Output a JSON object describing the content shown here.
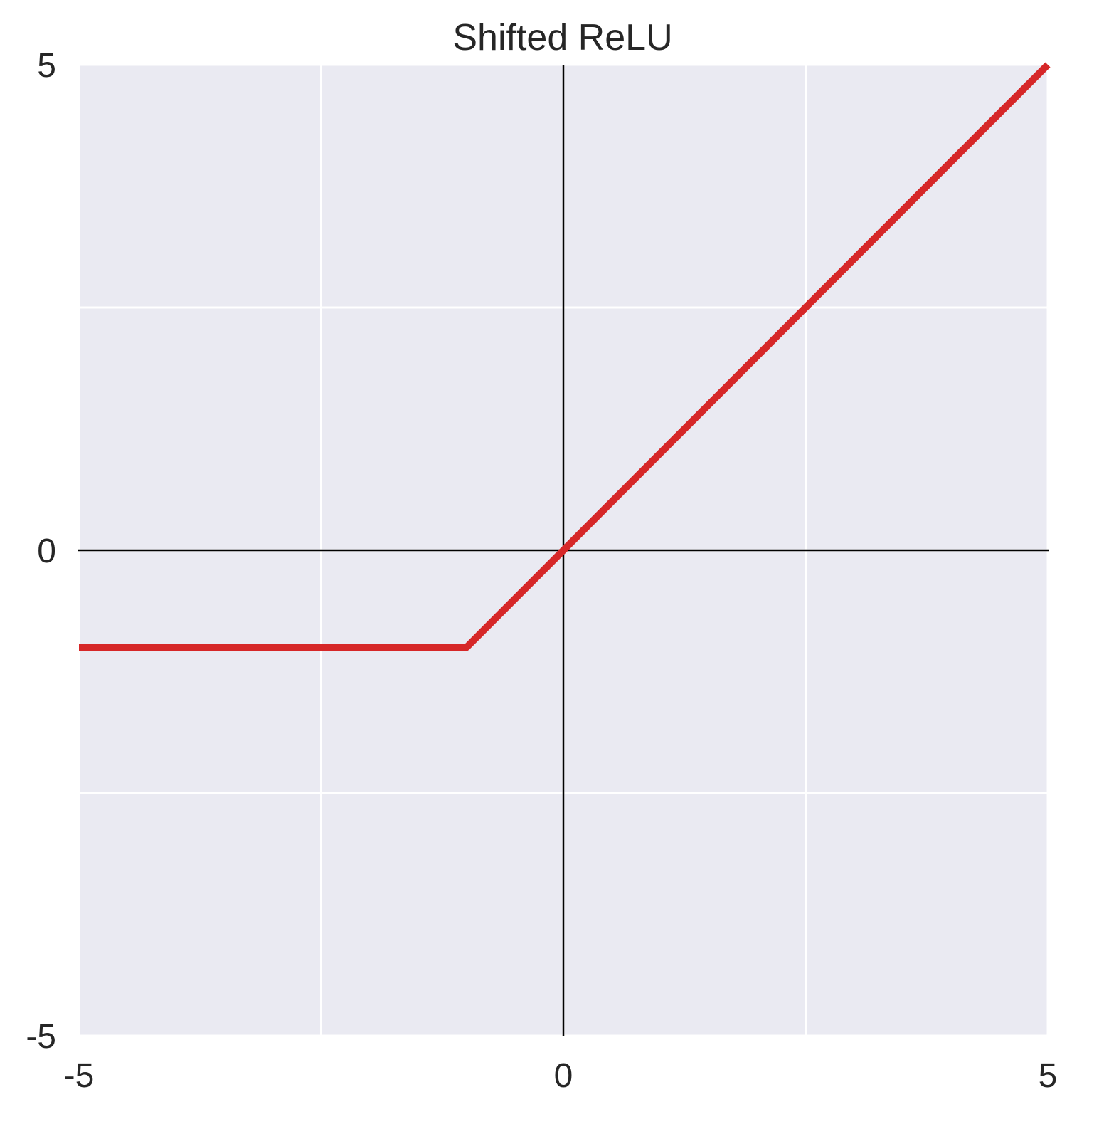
{
  "chart_data": {
    "type": "line",
    "title": "Shifted ReLU",
    "xlabel": "",
    "ylabel": "",
    "xlim": [
      -5,
      5
    ],
    "ylim": [
      -5,
      5
    ],
    "grid": true,
    "x_ticks": [
      -5,
      -2.5,
      0,
      2.5,
      5
    ],
    "y_ticks": [
      -5,
      -2.5,
      0,
      2.5,
      5
    ],
    "x_tick_labels": [
      "-5",
      "0",
      "5"
    ],
    "y_tick_labels": [
      "5",
      "0",
      "-5"
    ],
    "y_tick_label_values": [
      5,
      0,
      -5
    ],
    "x_tick_label_values": [
      -5,
      0,
      5
    ],
    "series": [
      {
        "x": [
          -5,
          -1,
          5
        ],
        "y": [
          -1,
          -1,
          5
        ],
        "color": "#d62728"
      }
    ],
    "colors": {
      "plot_background": "#eaeaf2",
      "grid": "#ffffff",
      "axis_lines": "#000000",
      "text": "#262626"
    }
  }
}
